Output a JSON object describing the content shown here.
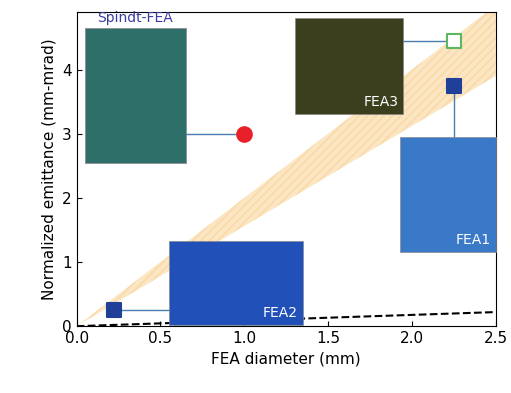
{
  "chart_data": {
    "type": "scatter",
    "x_label": "FEA diameter (mm)",
    "y_label": "Normalized emittance (mm-mrad)",
    "xlim": [
      0,
      2.5
    ],
    "ylim": [
      0,
      4.9
    ],
    "xticks": [
      {
        "value": 0.0,
        "label": "0.0"
      },
      {
        "value": 0.5,
        "label": "0.5"
      },
      {
        "value": 1.0,
        "label": "1.0"
      },
      {
        "value": 1.5,
        "label": "1.5"
      },
      {
        "value": 2.0,
        "label": "2.0"
      },
      {
        "value": 2.5,
        "label": "2.5"
      }
    ],
    "yticks": [
      0,
      1,
      2,
      3,
      4
    ],
    "grid": false,
    "points": [
      {
        "name": "Spindt-FEA",
        "x": 1.0,
        "y": 3.0,
        "color": "#e8202a",
        "marker": "circle"
      },
      {
        "name": "FEA3",
        "x": 2.25,
        "y": 4.45,
        "color": "#5cb85c",
        "marker": "open_square"
      },
      {
        "name": "FEA2",
        "x": 0.22,
        "y": 0.25,
        "color": "#1f3f99",
        "marker": "square"
      },
      {
        "name": "FEA1",
        "x": 2.25,
        "y": 3.75,
        "color": "#1f3f99",
        "marker": "square"
      }
    ],
    "band": {
      "x": [
        0.0,
        2.5
      ],
      "lower": [
        0.0,
        3.9
      ],
      "upper": [
        0.0,
        5.0
      ],
      "color": "#f7c77a"
    },
    "reference_line": {
      "x": [
        0.0,
        2.5
      ],
      "y": [
        0.0,
        0.22
      ],
      "color": "#000000",
      "line_style": "dashed"
    }
  }
}
